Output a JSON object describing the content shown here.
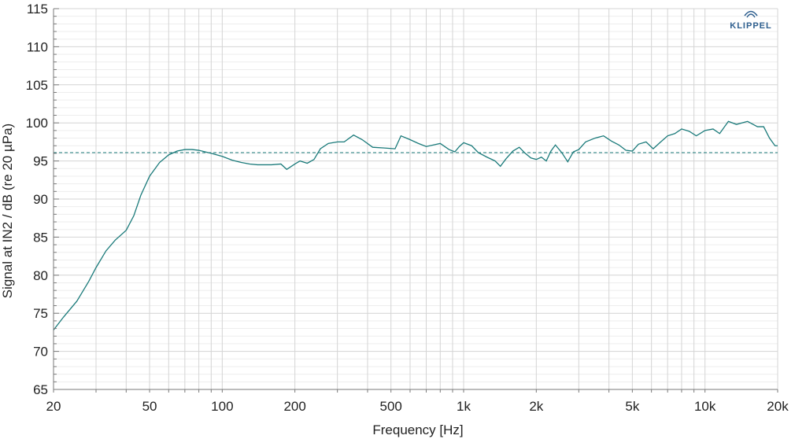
{
  "chart_data": {
    "type": "line",
    "xlabel": "Frequency [Hz]",
    "ylabel": "Signal at IN2 / dB (re 20 µPa)",
    "x_scale": "log",
    "xlim": [
      20,
      20000
    ],
    "ylim": [
      65,
      115
    ],
    "x_ticks": [
      {
        "value": 20,
        "label": "20"
      },
      {
        "value": 50,
        "label": "50"
      },
      {
        "value": 100,
        "label": "100"
      },
      {
        "value": 200,
        "label": "200"
      },
      {
        "value": 500,
        "label": "500"
      },
      {
        "value": 1000,
        "label": "1k"
      },
      {
        "value": 2000,
        "label": "2k"
      },
      {
        "value": 5000,
        "label": "5k"
      },
      {
        "value": 10000,
        "label": "10k"
      },
      {
        "value": 20000,
        "label": "20k"
      }
    ],
    "y_ticks": [
      65,
      70,
      75,
      80,
      85,
      90,
      95,
      100,
      105,
      110,
      115
    ],
    "grid": true,
    "reference_line": {
      "y": 96.1,
      "style": "dashed"
    },
    "series": [
      {
        "color": "#1a7a7a",
        "points": [
          [
            20,
            72.8
          ],
          [
            22,
            74.5
          ],
          [
            25,
            76.6
          ],
          [
            28,
            79.2
          ],
          [
            30,
            81.0
          ],
          [
            33,
            83.2
          ],
          [
            36,
            84.6
          ],
          [
            40,
            85.9
          ],
          [
            43,
            87.8
          ],
          [
            46,
            90.5
          ],
          [
            50,
            93.0
          ],
          [
            55,
            94.8
          ],
          [
            60,
            95.8
          ],
          [
            65,
            96.3
          ],
          [
            70,
            96.5
          ],
          [
            75,
            96.5
          ],
          [
            80,
            96.4
          ],
          [
            90,
            96.0
          ],
          [
            100,
            95.6
          ],
          [
            110,
            95.1
          ],
          [
            120,
            94.8
          ],
          [
            130,
            94.6
          ],
          [
            140,
            94.5
          ],
          [
            160,
            94.5
          ],
          [
            175,
            94.6
          ],
          [
            185,
            93.9
          ],
          [
            200,
            94.6
          ],
          [
            210,
            95.0
          ],
          [
            225,
            94.7
          ],
          [
            240,
            95.2
          ],
          [
            255,
            96.6
          ],
          [
            275,
            97.3
          ],
          [
            300,
            97.5
          ],
          [
            320,
            97.5
          ],
          [
            350,
            98.4
          ],
          [
            380,
            97.8
          ],
          [
            420,
            96.8
          ],
          [
            470,
            96.7
          ],
          [
            520,
            96.6
          ],
          [
            550,
            98.3
          ],
          [
            600,
            97.8
          ],
          [
            650,
            97.3
          ],
          [
            700,
            96.9
          ],
          [
            750,
            97.1
          ],
          [
            800,
            97.3
          ],
          [
            870,
            96.5
          ],
          [
            920,
            96.2
          ],
          [
            960,
            96.9
          ],
          [
            1000,
            97.4
          ],
          [
            1080,
            97.0
          ],
          [
            1150,
            96.1
          ],
          [
            1250,
            95.5
          ],
          [
            1350,
            95.0
          ],
          [
            1420,
            94.3
          ],
          [
            1500,
            95.3
          ],
          [
            1600,
            96.3
          ],
          [
            1700,
            96.8
          ],
          [
            1800,
            96.0
          ],
          [
            1900,
            95.4
          ],
          [
            2000,
            95.2
          ],
          [
            2100,
            95.5
          ],
          [
            2200,
            95.0
          ],
          [
            2300,
            96.3
          ],
          [
            2400,
            97.1
          ],
          [
            2550,
            96.1
          ],
          [
            2700,
            94.9
          ],
          [
            2850,
            96.2
          ],
          [
            3000,
            96.5
          ],
          [
            3200,
            97.5
          ],
          [
            3500,
            98.0
          ],
          [
            3800,
            98.3
          ],
          [
            4100,
            97.6
          ],
          [
            4400,
            97.1
          ],
          [
            4700,
            96.4
          ],
          [
            5000,
            96.3
          ],
          [
            5300,
            97.2
          ],
          [
            5700,
            97.5
          ],
          [
            6100,
            96.6
          ],
          [
            6500,
            97.4
          ],
          [
            7000,
            98.3
          ],
          [
            7500,
            98.6
          ],
          [
            8000,
            99.2
          ],
          [
            8600,
            98.9
          ],
          [
            9200,
            98.3
          ],
          [
            10000,
            99.0
          ],
          [
            10800,
            99.2
          ],
          [
            11500,
            98.6
          ],
          [
            12500,
            100.2
          ],
          [
            13500,
            99.8
          ],
          [
            15000,
            100.2
          ],
          [
            16500,
            99.5
          ],
          [
            17500,
            99.5
          ],
          [
            18500,
            98.0
          ],
          [
            19500,
            97.0
          ],
          [
            20000,
            97.0
          ]
        ]
      }
    ]
  },
  "brand": {
    "logo_text": "KLIPPEL"
  },
  "colors": {
    "grid": "#d4d4d4",
    "axis": "#7a7a7a",
    "line": "#1a7a7a",
    "logo": "#2e5f8f"
  }
}
